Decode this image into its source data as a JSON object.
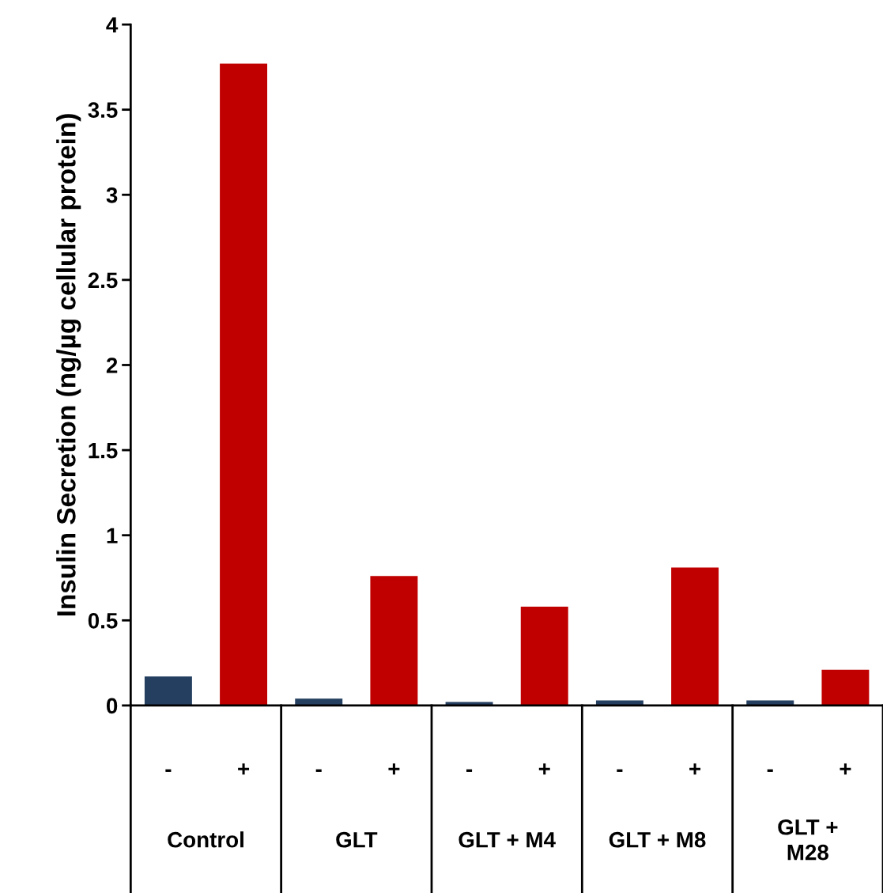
{
  "chart_data": {
    "type": "bar",
    "ylabel": "Insulin Secretion (ng/µg cellular protein)",
    "categories": [
      "-",
      "+",
      "-",
      "+",
      "-",
      "+",
      "-",
      "+",
      "-",
      "+"
    ],
    "values": [
      0.17,
      3.77,
      0.04,
      0.76,
      0.02,
      0.58,
      0.03,
      0.81,
      0.03,
      0.21
    ],
    "colors": [
      "#243f60",
      "#c00000",
      "#243f60",
      "#c00000",
      "#243f60",
      "#c00000",
      "#243f60",
      "#c00000",
      "#243f60",
      "#c00000"
    ],
    "annotations": [
      "Control",
      "GLT",
      "GLT + M4",
      "GLT + M8",
      "GLT +\nM28"
    ],
    "ylim": [
      0,
      4
    ],
    "yticks": [
      0,
      0.5,
      1,
      1.5,
      2,
      2.5,
      3,
      3.5,
      4
    ],
    "grid": false,
    "legend": false
  }
}
